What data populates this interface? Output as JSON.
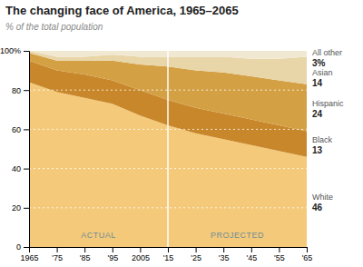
{
  "chart_data": {
    "type": "area",
    "stacked": true,
    "title": "The changing face of America, 1965–2065",
    "subtitle": "% of the total population",
    "x": [
      1965,
      1975,
      1985,
      1995,
      2005,
      2015,
      2025,
      2035,
      2045,
      2055,
      2065
    ],
    "series": [
      {
        "name": "White",
        "color": "#f5c97a",
        "values": [
          84,
          79,
          76,
          73,
          67,
          62,
          58,
          55,
          52,
          49,
          46
        ],
        "value_labels": [
          null,
          null,
          null,
          null,
          null,
          null,
          null,
          null,
          null,
          null,
          "46"
        ]
      },
      {
        "name": "Black",
        "color": "#c8872a",
        "values": [
          11,
          11,
          12,
          12,
          13,
          13,
          13,
          13,
          13,
          13,
          13
        ],
        "value_labels": [
          null,
          null,
          null,
          null,
          null,
          null,
          null,
          null,
          null,
          null,
          "13"
        ]
      },
      {
        "name": "Hispanic",
        "color": "#d4a044",
        "values": [
          4,
          5,
          7,
          10,
          13,
          17,
          19,
          21,
          22,
          23,
          24
        ],
        "value_labels": [
          null,
          null,
          null,
          null,
          null,
          null,
          null,
          null,
          null,
          null,
          "24"
        ]
      },
      {
        "name": "Asian",
        "color": "#e8d5a8",
        "values": [
          1,
          2,
          2,
          3,
          4,
          5,
          7,
          8,
          9,
          11,
          14
        ],
        "value_labels": [
          null,
          null,
          null,
          null,
          null,
          null,
          null,
          null,
          null,
          null,
          "14"
        ]
      },
      {
        "name": "All other",
        "color": "#f0e8d0",
        "values": [
          0,
          3,
          3,
          2,
          3,
          3,
          3,
          3,
          4,
          4,
          3
        ],
        "value_labels": [
          null,
          null,
          null,
          null,
          null,
          null,
          null,
          null,
          null,
          null,
          "3%"
        ]
      }
    ],
    "divider_x": 2015,
    "annotations": [
      {
        "text": "ACTUAL"
      },
      {
        "text": "PROJECTED"
      }
    ],
    "xlim": [
      1965,
      2065
    ],
    "xticks": [
      {
        "value": 1965,
        "label": "1965"
      },
      {
        "value": 1975,
        "label": "'75"
      },
      {
        "value": 1985,
        "label": "'85"
      },
      {
        "value": 1995,
        "label": "'95"
      },
      {
        "value": 2005,
        "label": "2005"
      },
      {
        "value": 2015,
        "label": "'15"
      },
      {
        "value": 2025,
        "label": "'25"
      },
      {
        "value": 2035,
        "label": "'35"
      },
      {
        "value": 2045,
        "label": "'45"
      },
      {
        "value": 2055,
        "label": "'55"
      },
      {
        "value": 2065,
        "label": "'65"
      }
    ],
    "ylim": [
      0,
      100
    ],
    "yticks": [
      0,
      20,
      40,
      60,
      80,
      {
        "value": 100,
        "label": "100%"
      }
    ],
    "grid": true
  }
}
